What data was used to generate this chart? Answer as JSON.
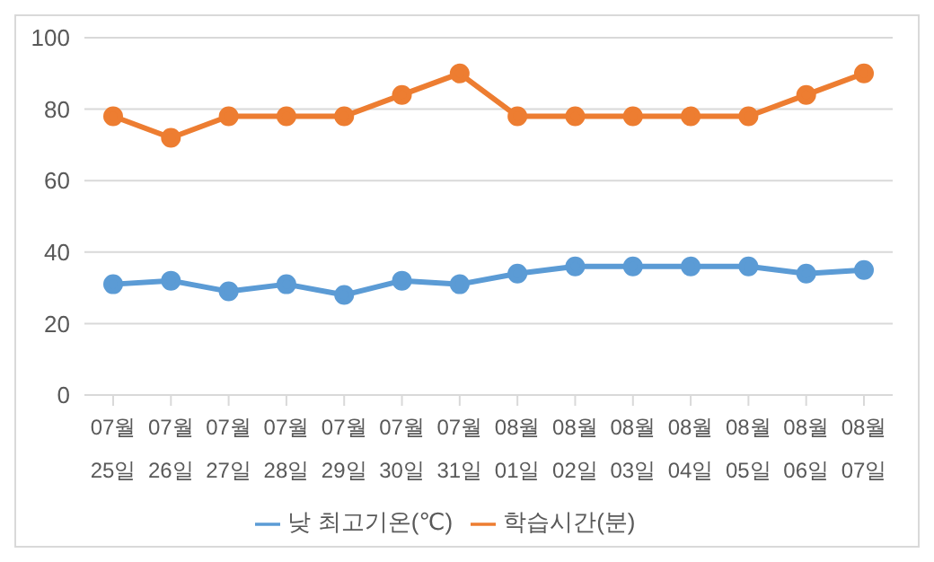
{
  "chart_data": {
    "type": "line",
    "categories": [
      "07월 25일",
      "07월 26일",
      "07월 27일",
      "07월 28일",
      "07월 29일",
      "07월 30일",
      "07월 31일",
      "08월 01일",
      "08월 02일",
      "08월 03일",
      "08월 04일",
      "08월 05일",
      "08월 06일",
      "08월 07일"
    ],
    "series": [
      {
        "name": "낮 최고기온(℃)",
        "color": "#5b9bd5",
        "values": [
          31,
          32,
          29,
          31,
          28,
          32,
          31,
          34,
          36,
          36,
          36,
          36,
          34,
          35
        ]
      },
      {
        "name": "학습시간(분)",
        "color": "#ed7d31",
        "values": [
          78,
          72,
          78,
          78,
          78,
          84,
          90,
          78,
          78,
          78,
          78,
          78,
          84,
          90
        ]
      }
    ],
    "ylim": [
      0,
      100
    ],
    "yticks": [
      0,
      20,
      40,
      60,
      80,
      100
    ],
    "grid": "y",
    "legend": "bottom",
    "marker": "circle",
    "line_style": "solid"
  }
}
